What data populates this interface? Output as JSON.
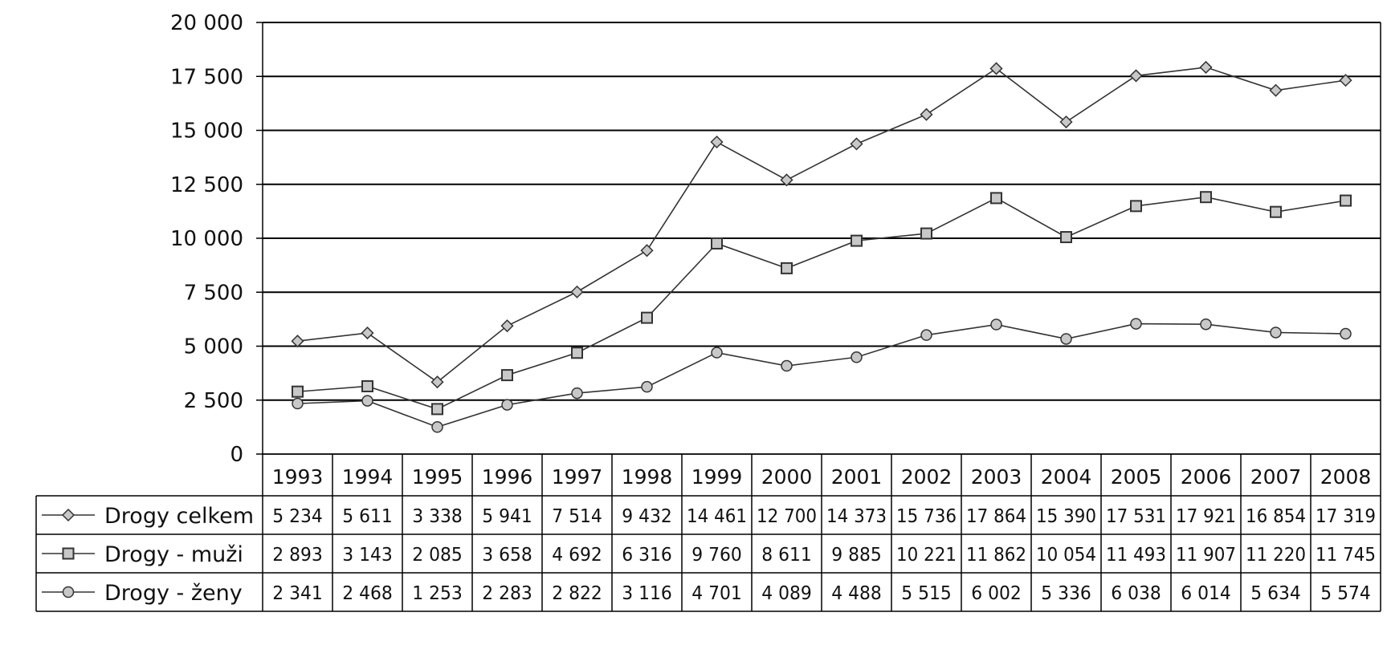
{
  "chart_data": {
    "type": "line",
    "title": "",
    "xlabel": "",
    "ylabel": "",
    "ylim": [
      0,
      20000
    ],
    "y_ticks": [
      "0",
      "2 500",
      "5 000",
      "7 500",
      "10 000",
      "12 500",
      "15 000",
      "17 500",
      "20 000"
    ],
    "y_tick_values": [
      0,
      2500,
      5000,
      7500,
      10000,
      12500,
      15000,
      17500,
      20000
    ],
    "grid": "horizontal",
    "legend": "data table below the plot",
    "categories": [
      "1993",
      "1994",
      "1995",
      "1996",
      "1997",
      "1998",
      "1999",
      "2000",
      "2001",
      "2002",
      "2003",
      "2004",
      "2005",
      "2006",
      "2007",
      "2008"
    ],
    "series": [
      {
        "name": "Drogy celkem",
        "marker": "diamond",
        "values": [
          5234,
          5611,
          3338,
          5941,
          7514,
          9432,
          14461,
          12700,
          14373,
          15736,
          17864,
          15390,
          17531,
          17921,
          16854,
          17319
        ],
        "labels": [
          "5 234",
          "5 611",
          "3 338",
          "5 941",
          "7 514",
          "9 432",
          "14 461",
          "12 700",
          "14 373",
          "15 736",
          "17 864",
          "15 390",
          "17 531",
          "17 921",
          "16 854",
          "17 319"
        ]
      },
      {
        "name": "Drogy - muži",
        "marker": "square",
        "values": [
          2893,
          3143,
          2085,
          3658,
          4692,
          6316,
          9760,
          8611,
          9885,
          10221,
          11862,
          10054,
          11493,
          11907,
          11220,
          11745
        ],
        "labels": [
          "2 893",
          "3 143",
          "2 085",
          "3 658",
          "4 692",
          "6 316",
          "9 760",
          "8 611",
          "9 885",
          "10 221",
          "11 862",
          "10 054",
          "11 493",
          "11 907",
          "11 220",
          "11 745"
        ]
      },
      {
        "name": "Drogy - ženy",
        "marker": "circle",
        "values": [
          2341,
          2468,
          1253,
          2283,
          2822,
          3116,
          4701,
          4089,
          4488,
          5515,
          6002,
          5336,
          6038,
          6014,
          5634,
          5574
        ],
        "labels": [
          "2 341",
          "2 468",
          "1 253",
          "2 283",
          "2 822",
          "3 116",
          "4 701",
          "4 089",
          "4 488",
          "5 515",
          "6 002",
          "5 336",
          "6 038",
          "6 014",
          "5 634",
          "5 574"
        ]
      }
    ],
    "colors": {
      "line": "#333333",
      "marker_fill": "#c8c8c8",
      "grid": "#000000"
    }
  }
}
